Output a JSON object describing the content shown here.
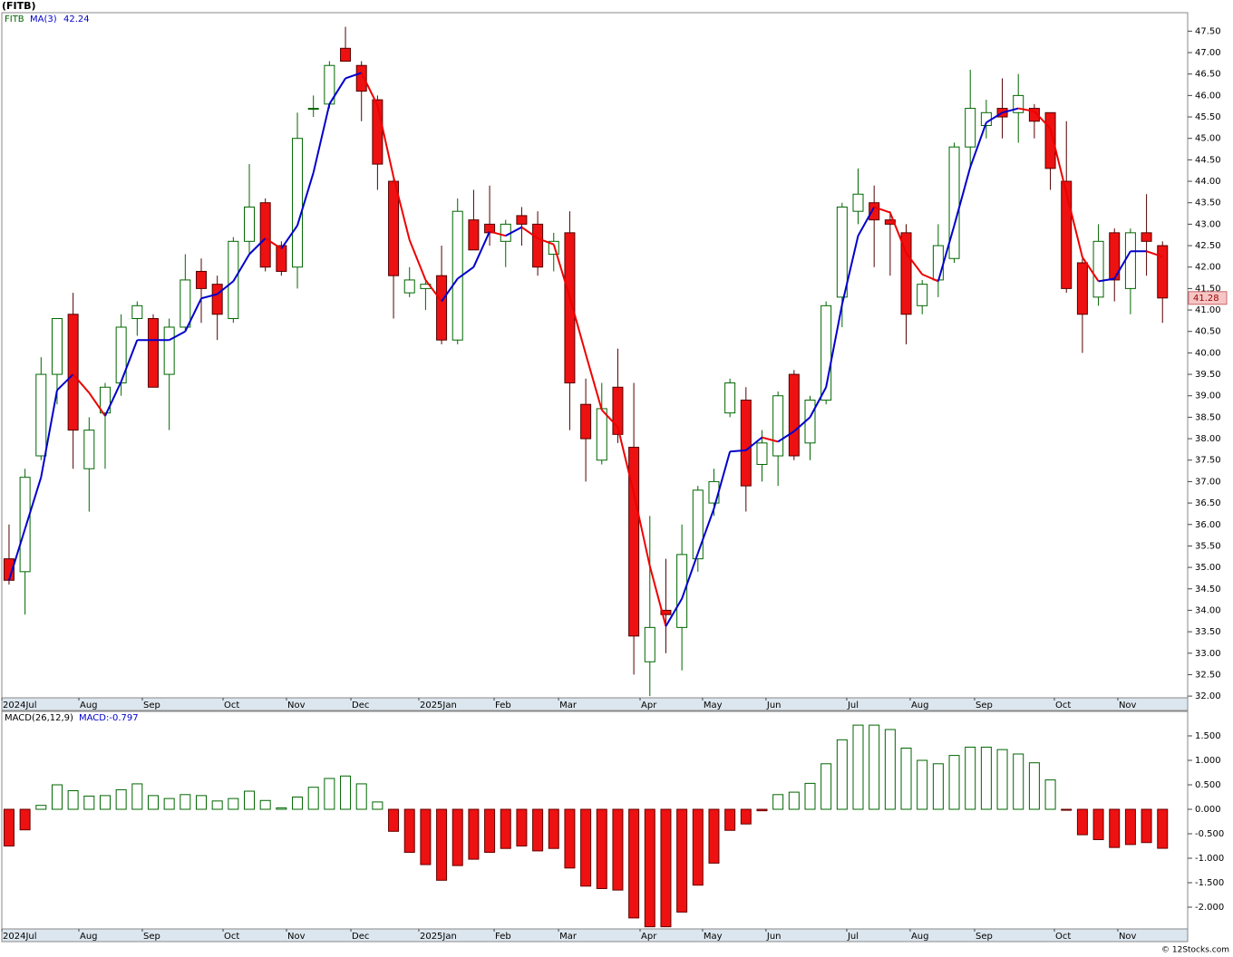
{
  "chart_data": [
    {
      "type": "candlestick",
      "title": "(FITB)",
      "symbol": "FITB",
      "ma_name": "MA(3)",
      "xlim": [
        -0.45,
        73.57
      ],
      "xticks": [
        {
          "value": -0.45,
          "label": "2024Jul"
        },
        {
          "value": 4.36,
          "label": "Aug"
        },
        {
          "value": 8.32,
          "label": "Sep"
        },
        {
          "value": 13.36,
          "label": "Oct"
        },
        {
          "value": 17.32,
          "label": "Nov"
        },
        {
          "value": 21.34,
          "label": "Dec"
        },
        {
          "value": 25.58,
          "label": "2025Jan"
        },
        {
          "value": 30.28,
          "label": "Feb"
        },
        {
          "value": 34.3,
          "label": "Mar"
        },
        {
          "value": 39.39,
          "label": "Apr"
        },
        {
          "value": 43.29,
          "label": "May"
        },
        {
          "value": 47.25,
          "label": "Jun"
        },
        {
          "value": 52.29,
          "label": "Jul"
        },
        {
          "value": 56.25,
          "label": "Aug"
        },
        {
          "value": 60.27,
          "label": "Sep"
        },
        {
          "value": 65.25,
          "label": "Oct"
        },
        {
          "value": 69.21,
          "label": "Nov"
        }
      ],
      "ylim": [
        31.96,
        47.93
      ],
      "yticks": [
        {
          "value": 32,
          "label": "32.00"
        },
        {
          "value": 32.5,
          "label": "32.50"
        },
        {
          "value": 33,
          "label": "33.00"
        },
        {
          "value": 33.5,
          "label": "33.50"
        },
        {
          "value": 34,
          "label": "34.00"
        },
        {
          "value": 34.5,
          "label": "34.50"
        },
        {
          "value": 35,
          "label": "35.00"
        },
        {
          "value": 35.5,
          "label": "35.50"
        },
        {
          "value": 36,
          "label": "36.00"
        },
        {
          "value": 36.5,
          "label": "36.50"
        },
        {
          "value": 37,
          "label": "37.00"
        },
        {
          "value": 37.5,
          "label": "37.50"
        },
        {
          "value": 38,
          "label": "38.00"
        },
        {
          "value": 38.5,
          "label": "38.50"
        },
        {
          "value": 39,
          "label": "39.00"
        },
        {
          "value": 39.5,
          "label": "39.50"
        },
        {
          "value": 40,
          "label": "40.00"
        },
        {
          "value": 40.5,
          "label": "40.50"
        },
        {
          "value": 41,
          "label": "41.00"
        },
        {
          "value": 41.5,
          "label": "41.50"
        },
        {
          "value": 42,
          "label": "42.00"
        },
        {
          "value": 42.5,
          "label": "42.50"
        },
        {
          "value": 43,
          "label": "43.00"
        },
        {
          "value": 43.5,
          "label": "43.50"
        },
        {
          "value": 44,
          "label": "44.00"
        },
        {
          "value": 44.5,
          "label": "44.50"
        },
        {
          "value": 45,
          "label": "45.00"
        },
        {
          "value": 45.5,
          "label": "45.50"
        },
        {
          "value": 46,
          "label": "46.00"
        },
        {
          "value": 46.5,
          "label": "46.50"
        },
        {
          "value": 47,
          "label": "47.00"
        },
        {
          "value": 47.5,
          "label": "47.50"
        }
      ],
      "open": [
        35.2,
        34.9,
        37.6,
        39.5,
        40.9,
        37.3,
        38.6,
        39.3,
        40.8,
        40.8,
        39.5,
        40.6,
        41.9,
        41.6,
        40.8,
        42.6,
        43.5,
        42.5,
        42.0,
        45.7,
        45.8,
        47.1,
        46.7,
        45.9,
        44.0,
        41.4,
        41.5,
        41.8,
        40.3,
        43.1,
        43.0,
        42.6,
        43.2,
        43.0,
        42.3,
        42.8,
        38.8,
        37.5,
        39.2,
        37.8,
        32.8,
        34.0,
        33.6,
        35.2,
        36.5,
        38.6,
        38.9,
        37.4,
        37.6,
        39.5,
        37.9,
        38.9,
        41.3,
        43.3,
        43.5,
        43.1,
        42.8,
        41.1,
        41.7,
        42.2,
        44.8,
        45.3,
        45.7,
        45.6,
        45.7,
        45.6,
        44.0,
        42.1,
        41.3,
        42.8,
        41.5,
        42.8,
        42.5
      ],
      "high": [
        36.0,
        37.3,
        39.9,
        40.8,
        41.4,
        38.5,
        39.3,
        40.9,
        41.2,
        40.9,
        40.8,
        42.3,
        42.2,
        41.8,
        42.7,
        44.4,
        43.6,
        42.6,
        45.6,
        46.0,
        46.8,
        47.6,
        46.8,
        46.0,
        44.1,
        42.0,
        41.7,
        42.5,
        43.6,
        43.8,
        43.9,
        43.1,
        43.4,
        43.3,
        42.8,
        43.3,
        39.4,
        39.3,
        40.1,
        39.3,
        36.2,
        35.2,
        36.0,
        36.9,
        37.3,
        39.4,
        39.2,
        38.2,
        39.1,
        39.6,
        39.0,
        41.2,
        43.5,
        44.3,
        43.9,
        43.3,
        43.0,
        41.7,
        43.0,
        44.9,
        46.6,
        45.9,
        46.4,
        46.5,
        45.8,
        45.6,
        45.4,
        42.2,
        43.0,
        42.9,
        42.9,
        43.7,
        42.6
      ],
      "low": [
        34.6,
        33.9,
        37.5,
        38.8,
        37.3,
        36.3,
        37.3,
        39.0,
        40.4,
        39.2,
        38.2,
        40.5,
        40.7,
        40.3,
        40.7,
        42.3,
        41.9,
        41.8,
        41.5,
        45.5,
        45.7,
        46.8,
        45.4,
        43.8,
        40.8,
        41.3,
        41.0,
        40.2,
        40.2,
        42.4,
        42.5,
        42.0,
        42.5,
        41.8,
        41.9,
        38.2,
        37.0,
        37.4,
        37.9,
        32.5,
        32.0,
        33.0,
        32.6,
        34.9,
        36.2,
        38.5,
        36.3,
        37.0,
        36.9,
        37.5,
        37.5,
        38.8,
        40.6,
        43.0,
        42.0,
        41.8,
        40.2,
        40.9,
        41.3,
        42.1,
        44.3,
        45.0,
        45.0,
        44.9,
        45.0,
        43.8,
        41.4,
        40.0,
        41.1,
        41.2,
        40.9,
        41.8,
        40.7
      ],
      "close": [
        34.7,
        37.1,
        39.5,
        40.8,
        38.2,
        38.2,
        39.2,
        40.6,
        41.1,
        39.2,
        40.6,
        41.7,
        41.5,
        40.9,
        42.6,
        43.4,
        42.0,
        41.9,
        45.0,
        45.7,
        46.7,
        46.8,
        46.1,
        44.4,
        41.8,
        41.7,
        41.6,
        40.3,
        43.3,
        42.4,
        42.8,
        43.0,
        43.0,
        42.0,
        42.6,
        39.3,
        38.0,
        38.7,
        38.1,
        33.4,
        33.6,
        33.9,
        35.3,
        36.8,
        37.0,
        39.3,
        36.9,
        37.9,
        39.0,
        37.6,
        38.9,
        41.1,
        43.4,
        43.7,
        43.1,
        43.0,
        40.9,
        41.6,
        42.5,
        44.8,
        45.7,
        45.6,
        45.5,
        46.0,
        45.4,
        44.3,
        41.5,
        40.9,
        42.6,
        41.7,
        42.8,
        42.6,
        41.28
      ],
      "ma": [
        34.7,
        35.9,
        37.1,
        39.13,
        39.5,
        39.07,
        38.53,
        39.33,
        40.3,
        40.3,
        40.3,
        40.5,
        41.27,
        41.37,
        41.67,
        42.3,
        42.67,
        42.43,
        42.97,
        44.2,
        45.8,
        46.4,
        46.53,
        45.77,
        44.1,
        42.63,
        41.7,
        41.2,
        41.73,
        42,
        42.83,
        42.73,
        42.93,
        42.67,
        42.53,
        41.3,
        39.97,
        38.67,
        38.27,
        36.73,
        35.03,
        33.63,
        34.27,
        35.33,
        36.37,
        37.7,
        37.73,
        38.03,
        37.93,
        38.17,
        38.5,
        39.2,
        41.13,
        42.73,
        43.4,
        43.27,
        42.33,
        41.83,
        41.67,
        42.97,
        44.33,
        45.37,
        45.6,
        45.7,
        45.63,
        45.23,
        43.73,
        42.23,
        41.67,
        41.73,
        42.37,
        42.37,
        42.24
      ],
      "up_color": "#006600",
      "down_color": "#ee1111",
      "ma_up_color": "#0000cc",
      "ma_down_color": "#ee0000"
    },
    {
      "type": "bar",
      "title": "MACD(26,12,9)",
      "value_label": "MACD:-0.797",
      "xlim": [
        -0.45,
        73.57
      ],
      "xticks": [
        {
          "value": -0.45,
          "label": "2024Jul"
        },
        {
          "value": 4.36,
          "label": "Aug"
        },
        {
          "value": 8.32,
          "label": "Sep"
        },
        {
          "value": 13.36,
          "label": "Oct"
        },
        {
          "value": 17.32,
          "label": "Nov"
        },
        {
          "value": 21.34,
          "label": "Dec"
        },
        {
          "value": 25.58,
          "label": "2025Jan"
        },
        {
          "value": 30.28,
          "label": "Feb"
        },
        {
          "value": 34.3,
          "label": "Mar"
        },
        {
          "value": 39.39,
          "label": "Apr"
        },
        {
          "value": 43.29,
          "label": "May"
        },
        {
          "value": 47.25,
          "label": "Jun"
        },
        {
          "value": 52.29,
          "label": "Jul"
        },
        {
          "value": 56.25,
          "label": "Aug"
        },
        {
          "value": 60.27,
          "label": "Sep"
        },
        {
          "value": 65.25,
          "label": "Oct"
        },
        {
          "value": 69.21,
          "label": "Nov"
        }
      ],
      "ylim": [
        -2.444,
        2.0
      ],
      "yticks": [
        {
          "value": 1.5,
          "label": "1.500"
        },
        {
          "value": 1,
          "label": "1.000"
        },
        {
          "value": 0.5,
          "label": "0.500"
        },
        {
          "value": 0,
          "label": "0.000"
        },
        {
          "value": -0.5,
          "label": "-0.500"
        },
        {
          "value": -1,
          "label": "-1.000"
        },
        {
          "value": -1.5,
          "label": "-1.500"
        },
        {
          "value": -2,
          "label": "-2.000"
        }
      ],
      "values": [
        -0.75,
        -0.42,
        0.08,
        0.5,
        0.38,
        0.27,
        0.28,
        0.4,
        0.52,
        0.28,
        0.22,
        0.3,
        0.28,
        0.17,
        0.22,
        0.37,
        0.18,
        0.03,
        0.25,
        0.45,
        0.63,
        0.68,
        0.52,
        0.15,
        -0.45,
        -0.88,
        -1.13,
        -1.45,
        -1.15,
        -1.02,
        -0.88,
        -0.8,
        -0.75,
        -0.85,
        -0.8,
        -1.2,
        -1.57,
        -1.62,
        -1.65,
        -2.22,
        -2.4,
        -2.4,
        -2.1,
        -1.55,
        -1.1,
        -0.43,
        -0.3,
        -0.03,
        0.3,
        0.35,
        0.53,
        0.93,
        1.42,
        1.72,
        1.72,
        1.63,
        1.25,
        1.0,
        0.93,
        1.1,
        1.27,
        1.27,
        1.22,
        1.13,
        0.95,
        0.6,
        -0.02,
        -0.52,
        -0.62,
        -0.78,
        -0.72,
        -0.68,
        -0.797
      ],
      "up_color": "#006600",
      "down_color": "#ee1111"
    }
  ],
  "footer": "© 12Stocks.com"
}
